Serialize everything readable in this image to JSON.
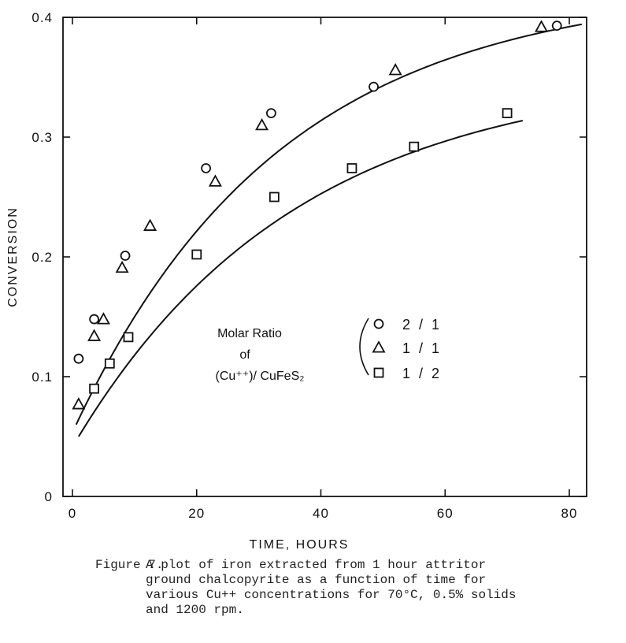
{
  "chart_data": {
    "type": "scatter",
    "xlabel": "TIME, HOURS",
    "ylabel": "CONVERSION",
    "xlim": [
      0,
      85
    ],
    "ylim": [
      0,
      0.4
    ],
    "xticks": [
      "0",
      "20",
      "40",
      "60",
      "80"
    ],
    "yticks": [
      "0",
      "0.1",
      "0.2",
      "0.3",
      "0.4"
    ],
    "grid": false,
    "legend_position": "center",
    "legend": {
      "title_line1": "Molar Ratio",
      "title_line2": "of",
      "title_line3": "(Cu⁺⁺)/ CuFeS₂"
    },
    "series": [
      {
        "name": "2 / 1",
        "marker": "circle",
        "x": [
          1,
          3.5,
          8.5,
          21.5,
          32,
          48.5,
          78
        ],
        "y": [
          0.115,
          0.148,
          0.201,
          0.274,
          0.32,
          0.342,
          0.393
        ]
      },
      {
        "name": "1 / 1",
        "marker": "triangle",
        "x": [
          1,
          3.5,
          5,
          8,
          12.5,
          23,
          30.5,
          52,
          75.5
        ],
        "y": [
          0.077,
          0.134,
          0.148,
          0.191,
          0.226,
          0.263,
          0.31,
          0.356,
          0.392
        ]
      },
      {
        "name": "1 / 2",
        "marker": "square",
        "x": [
          3.5,
          6,
          9,
          20,
          32.5,
          45,
          55,
          70
        ],
        "y": [
          0.09,
          0.111,
          0.133,
          0.202,
          0.25,
          0.274,
          0.292,
          0.32
        ]
      }
    ]
  },
  "caption": {
    "label": "Figure 7.",
    "text": "A plot of iron extracted from 1 hour attritor\nground chalcopyrite as a function of time for\nvarious Cu++ concentrations for 70°C, 0.5% solids\nand 1200 rpm."
  }
}
